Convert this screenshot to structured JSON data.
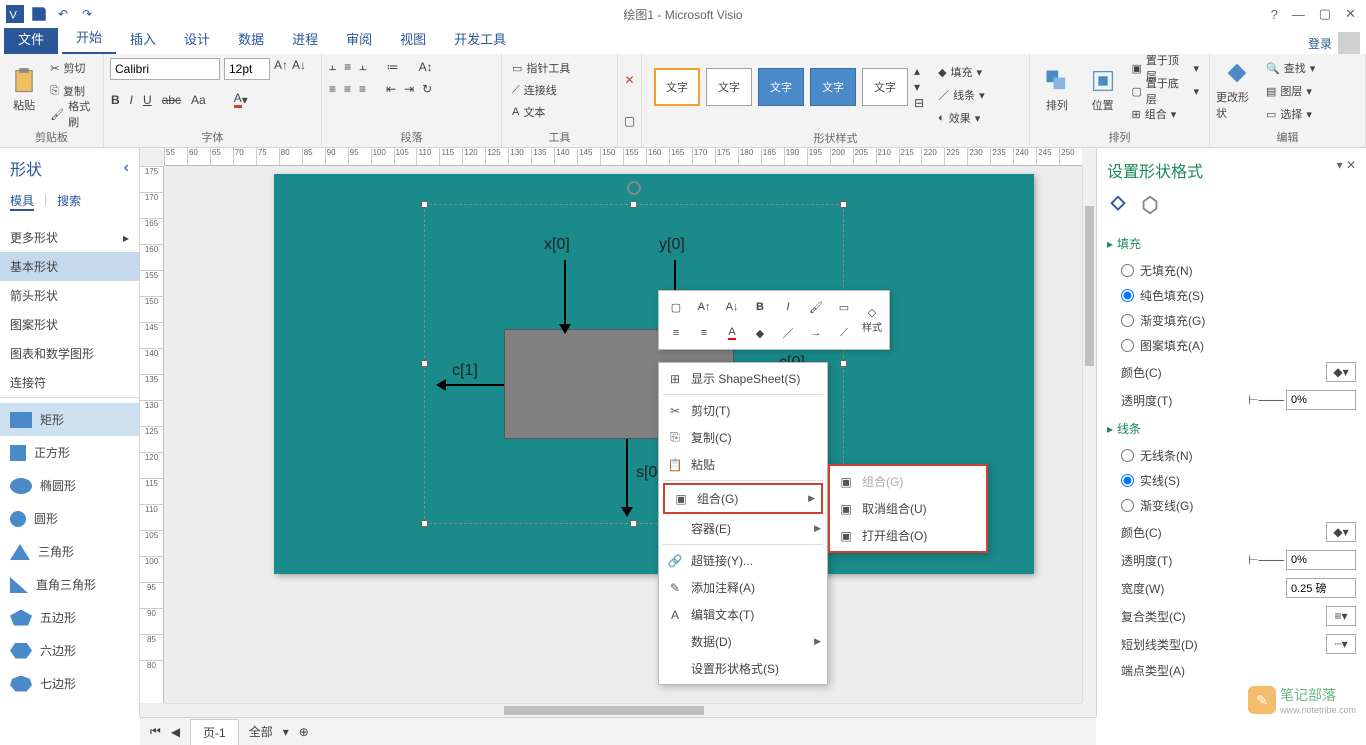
{
  "titlebar": {
    "doc": "绘图1 - Microsoft Visio"
  },
  "tabs": {
    "file": "文件",
    "home": "开始",
    "insert": "插入",
    "design": "设计",
    "data": "数据",
    "process": "进程",
    "review": "审阅",
    "view": "视图",
    "dev": "开发工具",
    "login": "登录"
  },
  "ribbon": {
    "clipboard": {
      "paste": "粘贴",
      "cut": "剪切",
      "copy": "复制",
      "painter": "格式刷",
      "label": "剪贴板"
    },
    "font": {
      "family": "Calibri",
      "size": "12pt",
      "label": "字体"
    },
    "para": {
      "label": "段落"
    },
    "tools": {
      "pointer": "指针工具",
      "connector": "连接线",
      "text": "文本",
      "label": "工具"
    },
    "styles": {
      "txt": "文字",
      "label": "形状样式"
    },
    "effects": {
      "fill": "填充",
      "line": "线条",
      "effect": "效果"
    },
    "arrange": {
      "arrange": "排列",
      "position": "位置",
      "top": "置于顶层",
      "bottom": "置于底层",
      "group": "组合",
      "label": "排列"
    },
    "edit": {
      "change": "更改形状",
      "find": "查找",
      "layer": "图层",
      "select": "选择",
      "label": "编辑"
    }
  },
  "shapes": {
    "title": "形状",
    "sub1": "模具",
    "sub2": "搜索",
    "cats": [
      "更多形状",
      "基本形状",
      "箭头形状",
      "图案形状",
      "图表和数学图形",
      "连接符"
    ],
    "active": "基本形状",
    "list": [
      {
        "n": "矩形",
        "sel": true
      },
      {
        "n": "正方形"
      },
      {
        "n": "椭圆形"
      },
      {
        "n": "圆形"
      },
      {
        "n": "三角形"
      },
      {
        "n": "直角三角形"
      },
      {
        "n": "五边形"
      },
      {
        "n": "六边形"
      },
      {
        "n": "七边形"
      }
    ]
  },
  "canvas": {
    "ruler_h_start": 55,
    "ruler_h_step": 5,
    "ruler_h_count": 40,
    "ruler_v_start": 175,
    "ruler_v_step": -5,
    "ruler_v_count": 20,
    "labels": {
      "x0": "x[0]",
      "y0": "y[0]",
      "c0": "c[0]",
      "c1": "c[1]",
      "s0": "s[0"
    },
    "page_bg": "#1a8a8a",
    "rect_fill": "#808080"
  },
  "minitb": {
    "labels": [
      "A",
      "A",
      "B",
      "I",
      "",
      "",
      "",
      "",
      "",
      "",
      "",
      "",
      "",
      "",
      "样式"
    ]
  },
  "ctx": {
    "items": [
      {
        "t": "显示 ShapeSheet(S)",
        "ic": "⊞"
      },
      {
        "t": "剪切(T)",
        "ic": "✂"
      },
      {
        "t": "复制(C)",
        "ic": "⎘"
      },
      {
        "t": "粘贴",
        "ic": "📋"
      },
      {
        "t": "组合(G)",
        "ic": "▣",
        "sub": true,
        "hl": true
      },
      {
        "t": "容器(E)",
        "sub": true
      },
      {
        "t": "超链接(Y)...",
        "ic": "🔗"
      },
      {
        "t": "添加注释(A)",
        "ic": "✎"
      },
      {
        "t": "编辑文本(T)",
        "ic": "A"
      },
      {
        "t": "数据(D)",
        "sub": true
      },
      {
        "t": "设置形状格式(S)"
      }
    ],
    "sub": [
      {
        "t": "组合(G)",
        "dis": true
      },
      {
        "t": "取消组合(U)"
      },
      {
        "t": "打开组合(O)"
      }
    ]
  },
  "fmt": {
    "title": "设置形状格式",
    "fill": {
      "title": "填充",
      "none": "无填充(N)",
      "solid": "纯色填充(S)",
      "grad": "渐变填充(G)",
      "pat": "图案填充(A)",
      "color": "颜色(C)",
      "trans": "透明度(T)",
      "trans_v": "0%"
    },
    "line": {
      "title": "线条",
      "none": "无线条(N)",
      "solid": "实线(S)",
      "grad": "渐变线(G)",
      "color": "颜色(C)",
      "trans": "透明度(T)",
      "trans_v": "0%",
      "width": "宽度(W)",
      "width_v": "0.25 磅",
      "comp": "复合类型(C)",
      "dash": "短划线类型(D)",
      "cap": "端点类型(A)"
    }
  },
  "bottom": {
    "page": "页-1",
    "all": "全部"
  },
  "watermark": {
    "txt": "笔记部落",
    "url": "www.notetribe.com"
  }
}
